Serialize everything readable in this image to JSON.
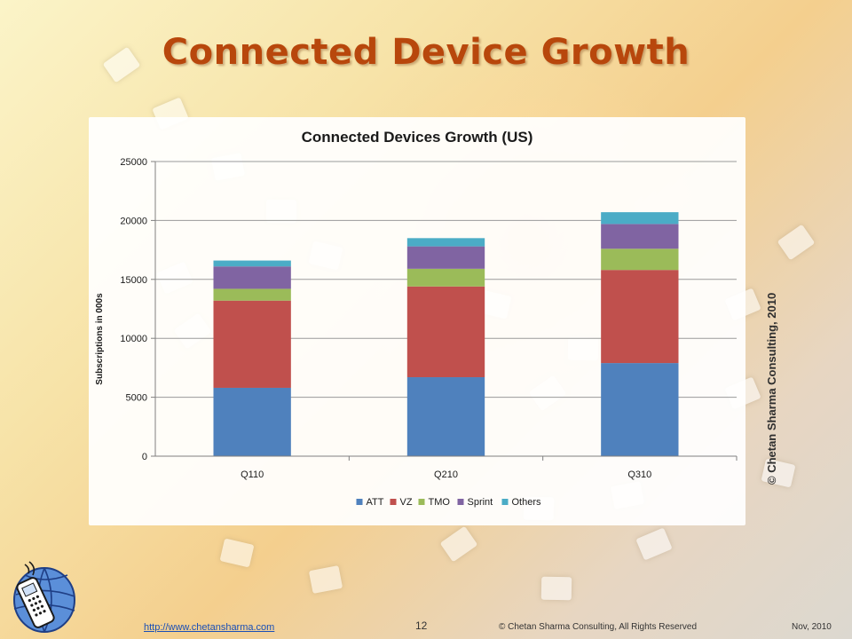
{
  "slide": {
    "title": "Connected Device Growth",
    "vertical_copyright": "© Chetan Sharma Consulting, 2010"
  },
  "footer": {
    "link": "http://www.chetansharma.com",
    "page_number": "12",
    "copyright": "© Chetan Sharma Consulting, All Rights Reserved",
    "date": "Nov, 2010"
  },
  "colors": {
    "title": "#b8470c",
    "ATT": "#4f81bd",
    "VZ": "#c0504d",
    "TMO": "#9bbb59",
    "Sprint": "#8064a2",
    "Others": "#4bacc6"
  },
  "chart_data": {
    "type": "bar",
    "stacked": true,
    "title": "Connected Devices Growth (US)",
    "xlabel": "",
    "ylabel": "Subscriptions in 000s",
    "categories": [
      "Q110",
      "Q210",
      "Q310"
    ],
    "ylim": [
      0,
      25000
    ],
    "yticks": [
      0,
      5000,
      10000,
      15000,
      20000,
      25000
    ],
    "grid": true,
    "legend_position": "bottom",
    "series": [
      {
        "name": "ATT",
        "color": "#4f81bd",
        "values": [
          5800,
          6700,
          7900
        ]
      },
      {
        "name": "VZ",
        "color": "#c0504d",
        "values": [
          7400,
          7700,
          7900
        ]
      },
      {
        "name": "TMO",
        "color": "#9bbb59",
        "values": [
          1000,
          1500,
          1800
        ]
      },
      {
        "name": "Sprint",
        "color": "#8064a2",
        "values": [
          1900,
          1900,
          2100
        ]
      },
      {
        "name": "Others",
        "color": "#4bacc6",
        "values": [
          500,
          700,
          1000
        ]
      }
    ]
  }
}
